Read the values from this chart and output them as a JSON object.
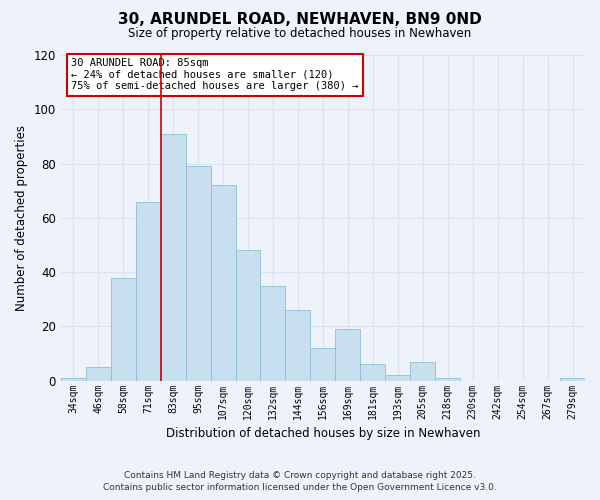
{
  "title": "30, ARUNDEL ROAD, NEWHAVEN, BN9 0ND",
  "subtitle": "Size of property relative to detached houses in Newhaven",
  "xlabel": "Distribution of detached houses by size in Newhaven",
  "ylabel": "Number of detached properties",
  "categories": [
    "34sqm",
    "46sqm",
    "58sqm",
    "71sqm",
    "83sqm",
    "95sqm",
    "107sqm",
    "120sqm",
    "132sqm",
    "144sqm",
    "156sqm",
    "169sqm",
    "181sqm",
    "193sqm",
    "205sqm",
    "218sqm",
    "230sqm",
    "242sqm",
    "254sqm",
    "267sqm",
    "279sqm"
  ],
  "values": [
    1,
    5,
    38,
    66,
    91,
    79,
    72,
    48,
    35,
    26,
    12,
    19,
    6,
    2,
    7,
    1,
    0,
    0,
    0,
    0,
    1
  ],
  "bar_color": "#c8dff0",
  "bar_edge_color": "#8fbcd4",
  "background_color": "#eef2fa",
  "grid_color": "#d8e4f0",
  "vline_x_index": 4,
  "vline_color": "#cc0000",
  "ylim": [
    0,
    120
  ],
  "yticks": [
    0,
    20,
    40,
    60,
    80,
    100,
    120
  ],
  "annotation_title": "30 ARUNDEL ROAD: 85sqm",
  "annotation_line1": "← 24% of detached houses are smaller (120)",
  "annotation_line2": "75% of semi-detached houses are larger (380) →",
  "annotation_box_color": "#ffffff",
  "annotation_box_edge": "#cc0000",
  "footer_line1": "Contains HM Land Registry data © Crown copyright and database right 2025.",
  "footer_line2": "Contains public sector information licensed under the Open Government Licence v3.0."
}
